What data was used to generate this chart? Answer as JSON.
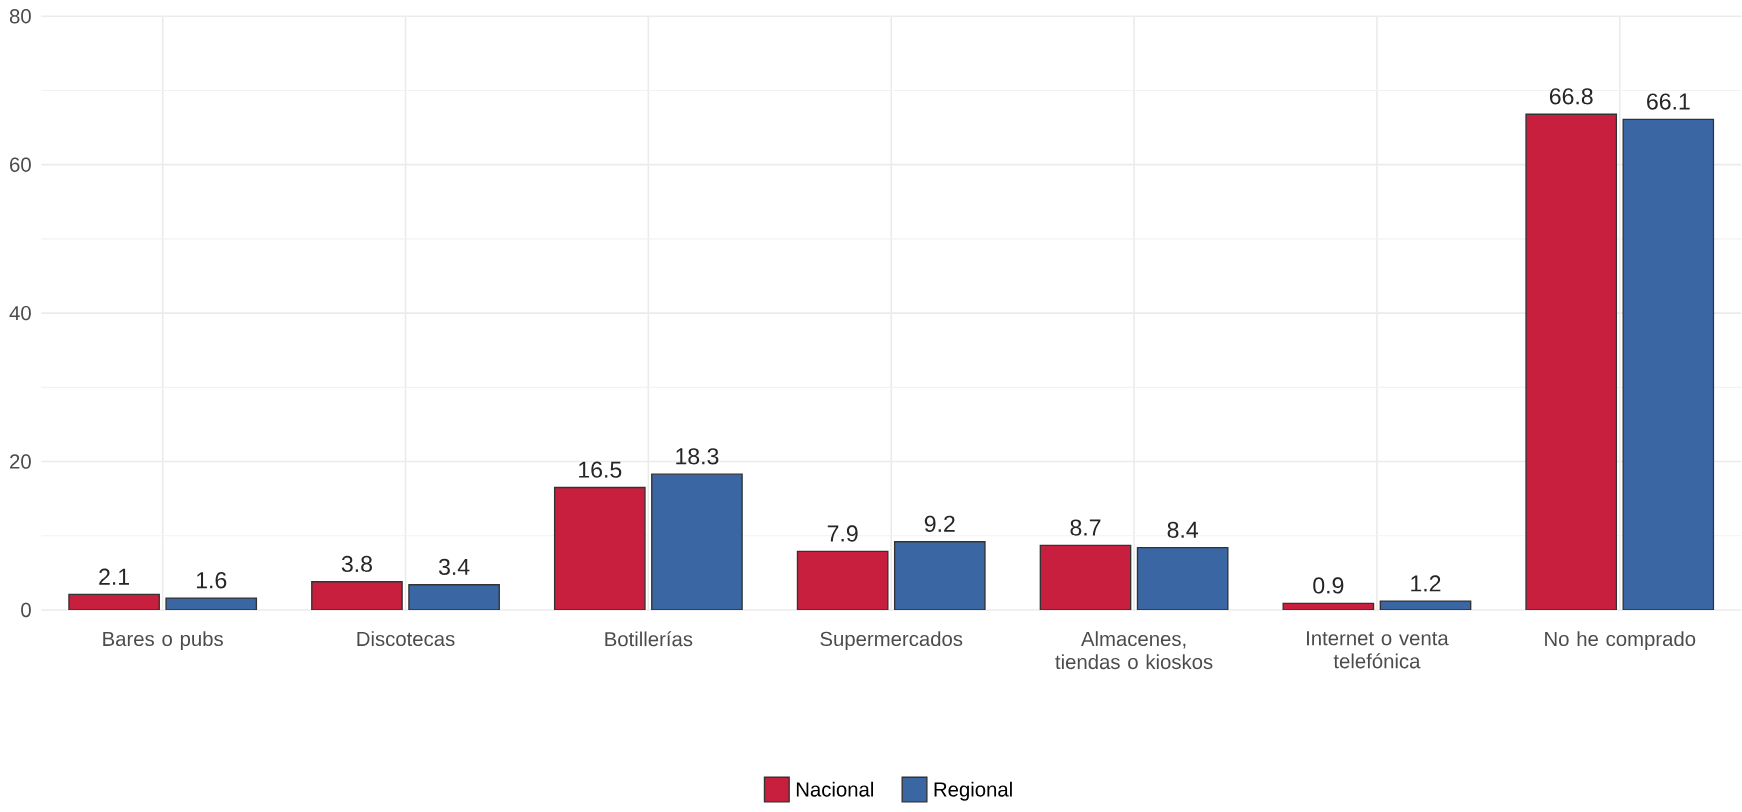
{
  "chart_data": {
    "type": "bar",
    "categories": [
      "Bares o pubs",
      "Discotecas",
      "Botillerías",
      "Supermercados",
      "Almacenes, tiendas o kioskos",
      "Internet o venta telefónica",
      "No he comprado"
    ],
    "series": [
      {
        "name": "Nacional",
        "color": "#c91f3f",
        "values": [
          2.1,
          3.8,
          16.5,
          7.9,
          8.7,
          0.9,
          66.8
        ]
      },
      {
        "name": "Regional",
        "color": "#3a66a4",
        "values": [
          1.6,
          3.4,
          18.3,
          9.2,
          8.4,
          1.2,
          66.1
        ]
      }
    ],
    "ylim": [
      0,
      80
    ],
    "yticks": [
      0,
      20,
      40,
      60,
      80
    ],
    "grid": true,
    "legend": "bottom",
    "data_labels": true
  }
}
